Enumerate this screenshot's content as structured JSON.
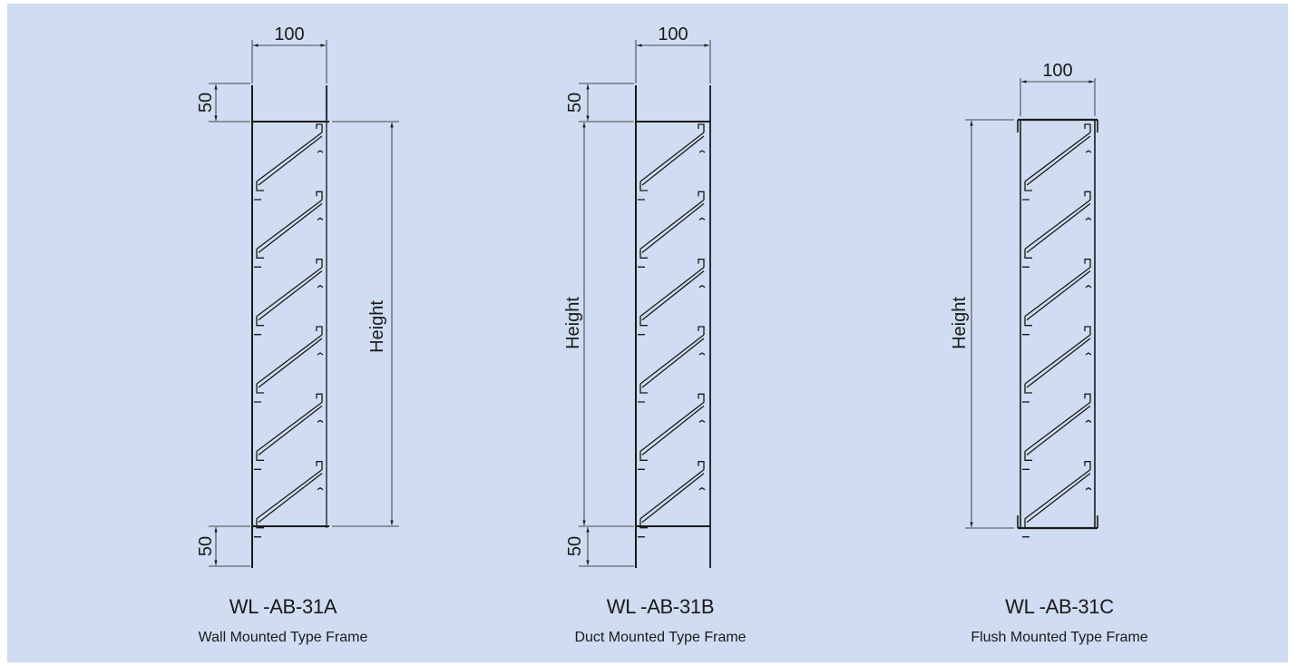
{
  "colors": {
    "background": "#cfdcf1",
    "line": "#1a1a1a"
  },
  "units": "mm",
  "variants": [
    {
      "code": "WL -AB-31A",
      "title": "Wall Mounted Type Frame",
      "width_dim": "100",
      "top_flange_dim": "50",
      "bottom_flange_dim": "50",
      "height_label": "Height",
      "blade_count": 6
    },
    {
      "code": "WL -AB-31B",
      "title": "Duct Mounted Type Frame",
      "width_dim": "100",
      "top_flange_dim": "50",
      "bottom_flange_dim": "50",
      "height_label": "Height",
      "blade_count": 6
    },
    {
      "code": "WL -AB-31C",
      "title": "Flush Mounted Type Frame",
      "width_dim": "100",
      "height_label": "Height",
      "blade_count": 6
    }
  ]
}
